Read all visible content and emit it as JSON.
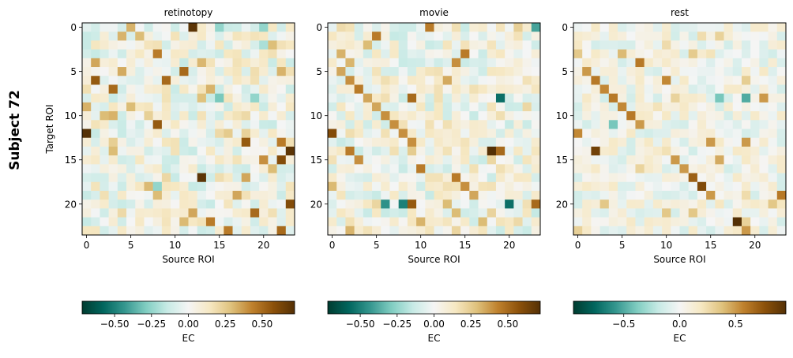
{
  "figure": {
    "suptitle": "Subject 72"
  },
  "chart_data": [
    {
      "type": "heatmap",
      "title": "retinotopy",
      "xlabel": "Source ROI",
      "ylabel": "Target ROI",
      "n": 24,
      "xticks": [
        0,
        5,
        10,
        15,
        20
      ],
      "yticks": [
        0,
        5,
        10,
        15,
        20
      ],
      "vrange": [
        -0.72,
        0.72
      ],
      "colorbar": {
        "label": "EC",
        "ticks": [
          -0.5,
          -0.25,
          0.0,
          0.25,
          0.5
        ],
        "tick_labels": [
          "−0.50",
          "−0.25",
          "0.00",
          "0.25",
          "0.50"
        ]
      },
      "seed": 72,
      "strong_cells": [
        [
          0,
          12,
          0.7
        ],
        [
          1,
          6,
          0.3
        ],
        [
          3,
          8,
          0.45
        ],
        [
          4,
          1,
          0.35
        ],
        [
          5,
          11,
          0.5
        ],
        [
          6,
          1,
          0.55
        ],
        [
          6,
          9,
          0.5
        ],
        [
          7,
          3,
          0.5
        ],
        [
          8,
          15,
          -0.3
        ],
        [
          8,
          19,
          -0.25
        ],
        [
          9,
          5,
          0.3
        ],
        [
          10,
          2,
          0.3
        ],
        [
          11,
          8,
          0.55
        ],
        [
          12,
          0,
          0.72
        ],
        [
          12,
          15,
          0.2
        ],
        [
          13,
          18,
          0.55
        ],
        [
          13,
          22,
          0.45
        ],
        [
          14,
          23,
          0.7
        ],
        [
          15,
          20,
          0.4
        ],
        [
          15,
          22,
          0.6
        ],
        [
          16,
          21,
          0.3
        ],
        [
          17,
          13,
          0.7
        ],
        [
          18,
          8,
          -0.25
        ],
        [
          19,
          17,
          0.35
        ],
        [
          20,
          23,
          0.6
        ],
        [
          21,
          12,
          0.35
        ],
        [
          21,
          19,
          0.5
        ],
        [
          22,
          14,
          0.45
        ],
        [
          23,
          16,
          0.45
        ],
        [
          23,
          22,
          0.5
        ],
        [
          14,
          3,
          0.3
        ],
        [
          19,
          8,
          0.3
        ],
        [
          2,
          20,
          -0.2
        ],
        [
          0,
          15,
          -0.25
        ],
        [
          0,
          20,
          -0.25
        ]
      ]
    },
    {
      "type": "heatmap",
      "title": "movie",
      "xlabel": "Source ROI",
      "ylabel": "",
      "n": 24,
      "xticks": [
        0,
        5,
        10,
        15,
        20
      ],
      "yticks": [
        0,
        5,
        10,
        15,
        20
      ],
      "vrange": [
        -0.72,
        0.72
      ],
      "colorbar": {
        "label": "EC",
        "ticks": [
          -0.5,
          -0.25,
          0.0,
          0.25,
          0.5
        ],
        "tick_labels": [
          "−0.50",
          "−0.25",
          "0.00",
          "0.25",
          "0.50"
        ]
      },
      "seed": 173,
      "strong_cells": [
        [
          0,
          11,
          0.45
        ],
        [
          0,
          23,
          -0.4
        ],
        [
          1,
          5,
          0.45
        ],
        [
          2,
          4,
          0.3
        ],
        [
          3,
          15,
          0.45
        ],
        [
          4,
          14,
          0.4
        ],
        [
          5,
          1,
          0.35
        ],
        [
          6,
          2,
          0.4
        ],
        [
          7,
          3,
          0.45
        ],
        [
          8,
          4,
          0.35
        ],
        [
          8,
          9,
          0.5
        ],
        [
          8,
          19,
          -0.55
        ],
        [
          9,
          5,
          0.35
        ],
        [
          10,
          6,
          0.4
        ],
        [
          11,
          7,
          0.4
        ],
        [
          12,
          0,
          0.6
        ],
        [
          12,
          8,
          0.4
        ],
        [
          13,
          9,
          0.4
        ],
        [
          14,
          2,
          0.45
        ],
        [
          14,
          18,
          0.72
        ],
        [
          14,
          19,
          0.5
        ],
        [
          15,
          3,
          0.4
        ],
        [
          16,
          10,
          0.45
        ],
        [
          17,
          14,
          0.45
        ],
        [
          18,
          15,
          0.4
        ],
        [
          19,
          16,
          0.35
        ],
        [
          20,
          9,
          0.55
        ],
        [
          20,
          6,
          -0.45
        ],
        [
          20,
          8,
          -0.5
        ],
        [
          20,
          20,
          -0.55
        ],
        [
          20,
          23,
          0.5
        ],
        [
          21,
          14,
          0.3
        ],
        [
          22,
          17,
          0.3
        ],
        [
          20,
          13,
          0.3
        ]
      ]
    },
    {
      "type": "heatmap",
      "title": "rest",
      "xlabel": "Source ROI",
      "ylabel": "",
      "n": 24,
      "xticks": [
        0,
        5,
        10,
        15,
        20
      ],
      "yticks": [
        0,
        5,
        10,
        15,
        20
      ],
      "vrange": [
        -0.95,
        0.95
      ],
      "colorbar": {
        "label": "EC",
        "ticks": [
          -0.5,
          0.0,
          0.5
        ],
        "tick_labels": [
          "−0.5",
          "0.0",
          "0.5"
        ]
      },
      "seed": 274,
      "strong_cells": [
        [
          1,
          16,
          0.3
        ],
        [
          3,
          5,
          0.4
        ],
        [
          4,
          7,
          0.6
        ],
        [
          5,
          1,
          0.5
        ],
        [
          6,
          2,
          0.6
        ],
        [
          6,
          10,
          0.55
        ],
        [
          7,
          3,
          0.55
        ],
        [
          8,
          4,
          0.6
        ],
        [
          8,
          16,
          -0.4
        ],
        [
          8,
          19,
          -0.5
        ],
        [
          8,
          21,
          0.5
        ],
        [
          9,
          5,
          0.55
        ],
        [
          10,
          6,
          0.6
        ],
        [
          11,
          7,
          0.5
        ],
        [
          11,
          4,
          -0.4
        ],
        [
          12,
          0,
          0.55
        ],
        [
          13,
          15,
          0.5
        ],
        [
          13,
          19,
          0.5
        ],
        [
          14,
          2,
          0.85
        ],
        [
          15,
          11,
          0.5
        ],
        [
          15,
          16,
          0.45
        ],
        [
          16,
          12,
          0.5
        ],
        [
          17,
          13,
          0.7
        ],
        [
          18,
          14,
          0.8
        ],
        [
          19,
          15,
          0.5
        ],
        [
          20,
          3,
          0.35
        ],
        [
          20,
          22,
          0.35
        ],
        [
          21,
          10,
          0.35
        ],
        [
          21,
          13,
          0.35
        ],
        [
          22,
          18,
          0.95
        ],
        [
          23,
          19,
          0.5
        ],
        [
          22,
          19,
          0.3
        ],
        [
          19,
          23,
          0.6
        ]
      ]
    }
  ]
}
